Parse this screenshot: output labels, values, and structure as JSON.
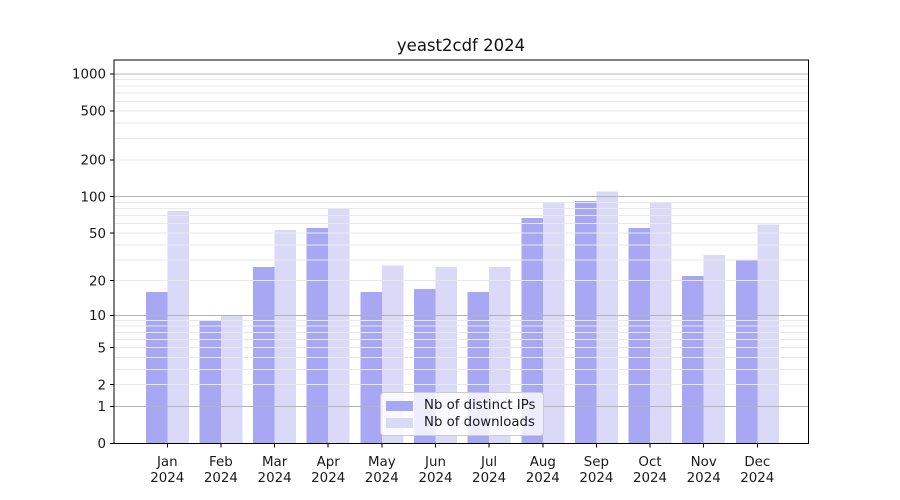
{
  "chart_data": {
    "type": "bar",
    "title": "yeast2cdf 2024",
    "categories": [
      "Jan",
      "Feb",
      "Mar",
      "Apr",
      "May",
      "Jun",
      "Jul",
      "Aug",
      "Sep",
      "Oct",
      "Nov",
      "Dec"
    ],
    "x_tick_second_line": "2024",
    "series": [
      {
        "name": "Nb of distinct IPs",
        "key": "distinct-ips",
        "color": "#a7a7f3",
        "values": [
          16,
          9,
          26,
          55,
          16,
          17,
          16,
          67,
          92,
          55,
          22,
          30
        ]
      },
      {
        "name": "Nb of downloads",
        "key": "downloads",
        "color": "#dadaf8",
        "values": [
          76,
          10,
          53,
          81,
          27,
          26,
          26,
          90,
          110,
          90,
          33,
          59
        ]
      }
    ],
    "yscale": "log10(1+x)",
    "ylim": [
      0,
      1300
    ],
    "yticks": [
      0,
      1,
      2,
      5,
      10,
      20,
      50,
      100,
      200,
      500,
      1000
    ],
    "major_gridline_values": [
      1,
      10,
      100,
      1000
    ],
    "grid": true,
    "legend_position": "lower center",
    "colors": {
      "major_grid": "#b3b3b3",
      "minor_grid": "#e9e9e9",
      "axis": "#000000",
      "text": "#1a1a1a",
      "legend_border": "#cccccc",
      "background": "#ffffff"
    }
  }
}
